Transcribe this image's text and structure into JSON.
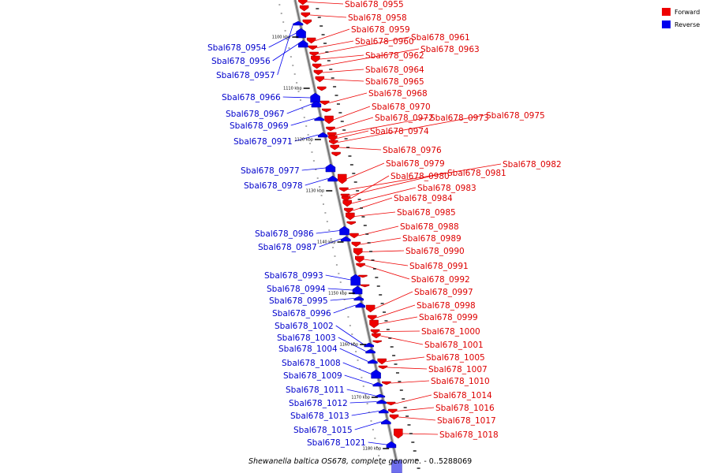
{
  "legend": {
    "forward_label": "Forward",
    "reverse_label": "Reverse",
    "forward_color": "#ee0000",
    "reverse_color": "#0000ee"
  },
  "caption": {
    "organism": "Shewanella baltica OS678, complete genome.",
    "range": " - 0..5288069"
  },
  "ticks": [
    "1100 kbp",
    "1110 kbp",
    "1120 kbp",
    "1130 kbp",
    "1140 kbp",
    "1150 kbp",
    "1160 kbp",
    "1170 kbp",
    "1180 kbp"
  ],
  "forward_genes": [
    "Sbal678_0955",
    "Sbal678_0958",
    "Sbal678_0959",
    "Sbal678_0960",
    "Sbal678_0961",
    "Sbal678_0962",
    "Sbal678_0963",
    "Sbal678_0964",
    "Sbal678_0965",
    "Sbal678_0968",
    "Sbal678_0970",
    "Sbal678_0972",
    "Sbal678_0973",
    "Sbal678_0975",
    "Sbal678_0974",
    "Sbal678_0976",
    "Sbal678_0979",
    "Sbal678_0982",
    "Sbal678_0981",
    "Sbal678_0980",
    "Sbal678_0983",
    "Sbal678_0984",
    "Sbal678_0985",
    "Sbal678_0988",
    "Sbal678_0989",
    "Sbal678_0990",
    "Sbal678_0991",
    "Sbal678_0992",
    "Sbal678_0997",
    "Sbal678_0998",
    "Sbal678_0999",
    "Sbal678_1000",
    "Sbal678_1001",
    "Sbal678_1005",
    "Sbal678_1007",
    "Sbal678_1010",
    "Sbal678_1014",
    "Sbal678_1016",
    "Sbal678_1017",
    "Sbal678_1018"
  ],
  "reverse_genes": [
    "Sbal678_0954",
    "Sbal678_0956",
    "Sbal678_0957",
    "Sbal678_0966",
    "Sbal678_0967",
    "Sbal678_0969",
    "Sbal678_0971",
    "Sbal678_0977",
    "Sbal678_0978",
    "Sbal678_0986",
    "Sbal678_0987",
    "Sbal678_0993",
    "Sbal678_0994",
    "Sbal678_0995",
    "Sbal678_0996",
    "Sbal678_1002",
    "Sbal678_1003",
    "Sbal678_1004",
    "Sbal678_1008",
    "Sbal678_1009",
    "Sbal678_1011",
    "Sbal678_1012",
    "Sbal678_1013",
    "Sbal678_1015",
    "Sbal678_1021"
  ]
}
